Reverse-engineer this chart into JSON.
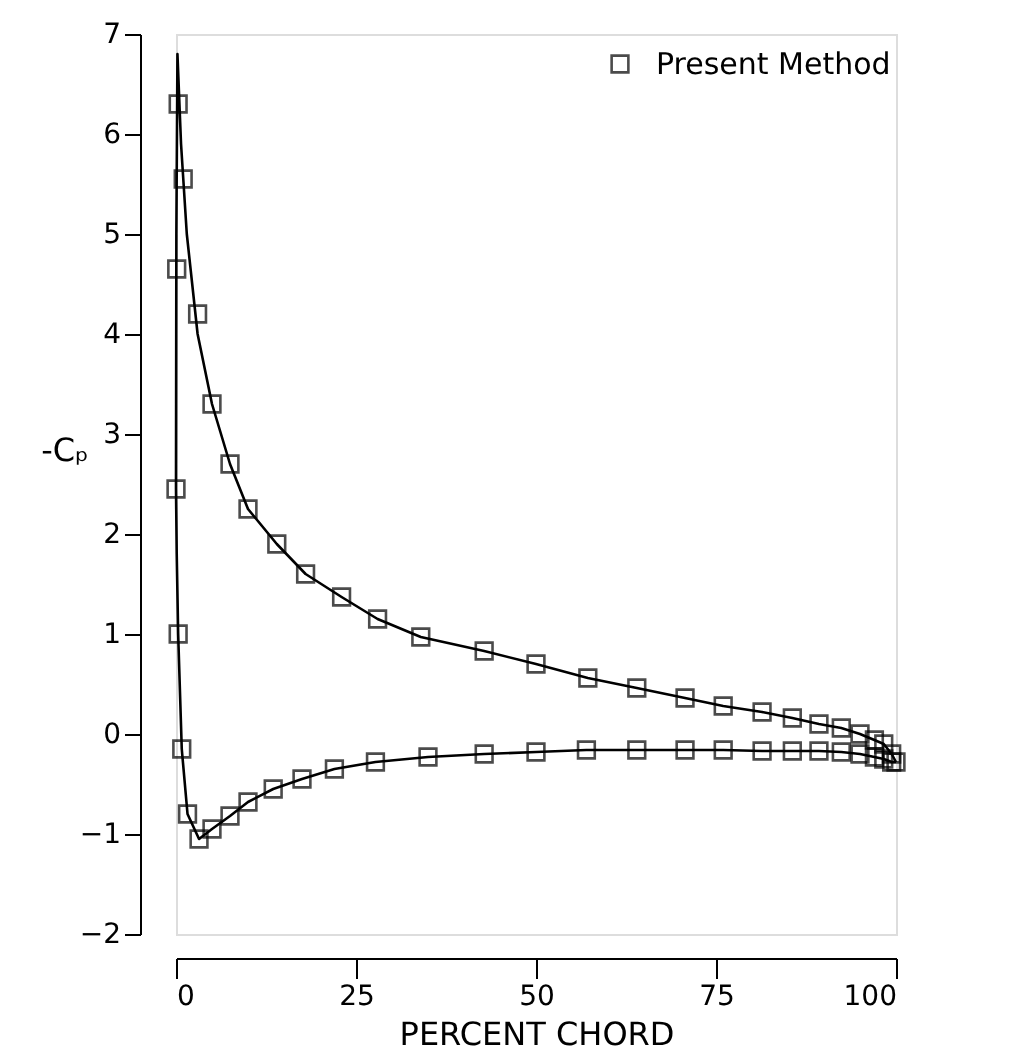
{
  "chart_data": {
    "type": "line",
    "xlabel": "PERCENT CHORD",
    "ylabel": "-Cₚ",
    "xlim": [
      0,
      100
    ],
    "ylim": [
      -2,
      7
    ],
    "xticks": [
      0,
      25,
      50,
      75,
      100
    ],
    "yticks": [
      -2,
      -1,
      0,
      1,
      2,
      3,
      4,
      5,
      6,
      7
    ],
    "grid": false,
    "legend": "top right",
    "series": [
      {
        "color": "#000000",
        "marker": "none",
        "line_style": "solid",
        "x": [
          0,
          0.05,
          0.2,
          0.7,
          1.5,
          3,
          5,
          7.5,
          10,
          14,
          18,
          23,
          28,
          34,
          42.8,
          50,
          57.2,
          64,
          70.7,
          76,
          81.4,
          85.6,
          89.3,
          92.4,
          95,
          97,
          98.3,
          99.4,
          100
        ],
        "values": [
          2.45,
          5.0,
          6.8,
          5.9,
          5.0,
          4.0,
          3.3,
          2.7,
          2.25,
          1.9,
          1.6,
          1.37,
          1.15,
          0.97,
          0.83,
          0.7,
          0.56,
          0.46,
          0.36,
          0.28,
          0.22,
          0.16,
          0.1,
          0.06,
          0,
          -0.06,
          -0.1,
          -0.2,
          -0.28
        ]
      },
      {
        "color": "#000000",
        "marker": "none",
        "line_style": "solid",
        "x": [
          0,
          0.1,
          0.3,
          0.8,
          1.6,
          3.2,
          5,
          7.5,
          10,
          13.5,
          17.5,
          22,
          27.7,
          35,
          42.8,
          50,
          57,
          64,
          70.7,
          76,
          81.4,
          85.6,
          89.3,
          92.4,
          95,
          97,
          98.3,
          99.4,
          100
        ],
        "values": [
          2.45,
          1.8,
          1.0,
          -0.15,
          -0.8,
          -1.05,
          -0.95,
          -0.82,
          -0.68,
          -0.55,
          -0.45,
          -0.35,
          -0.28,
          -0.23,
          -0.2,
          -0.18,
          -0.16,
          -0.16,
          -0.16,
          -0.16,
          -0.17,
          -0.17,
          -0.17,
          -0.18,
          -0.2,
          -0.23,
          -0.25,
          -0.28,
          -0.28
        ]
      },
      {
        "type": "scatter",
        "name": "Present Method",
        "color": "#000000",
        "marker": "square",
        "x": [
          0.3,
          1,
          3,
          5,
          7.5,
          10,
          14,
          18,
          23,
          28,
          34,
          42.8,
          50,
          57.2,
          64,
          70.7,
          76,
          81.4,
          85.6,
          89.3,
          92.4,
          95,
          97,
          98.3,
          99.4,
          100,
          0.1,
          0,
          0.3,
          0.8,
          1.6,
          3.2,
          5,
          7.5,
          10,
          13.5,
          17.5,
          22,
          27.7,
          35,
          42.8,
          50,
          57,
          64,
          70.7,
          76,
          81.4,
          85.6,
          89.3,
          92.4,
          95,
          97,
          98.3,
          99.4
        ],
        "values": [
          6.3,
          5.55,
          4.2,
          3.3,
          2.7,
          2.25,
          1.9,
          1.6,
          1.37,
          1.15,
          0.97,
          0.83,
          0.7,
          0.56,
          0.46,
          0.36,
          0.28,
          0.22,
          0.16,
          0.1,
          0.06,
          0,
          -0.06,
          -0.1,
          -0.2,
          -0.28,
          4.65,
          2.45,
          1.0,
          -0.15,
          -0.8,
          -1.05,
          -0.95,
          -0.82,
          -0.68,
          -0.55,
          -0.45,
          -0.35,
          -0.28,
          -0.23,
          -0.2,
          -0.18,
          -0.16,
          -0.16,
          -0.16,
          -0.16,
          -0.17,
          -0.17,
          -0.17,
          -0.18,
          -0.2,
          -0.23,
          -0.25,
          -0.28
        ]
      }
    ]
  }
}
